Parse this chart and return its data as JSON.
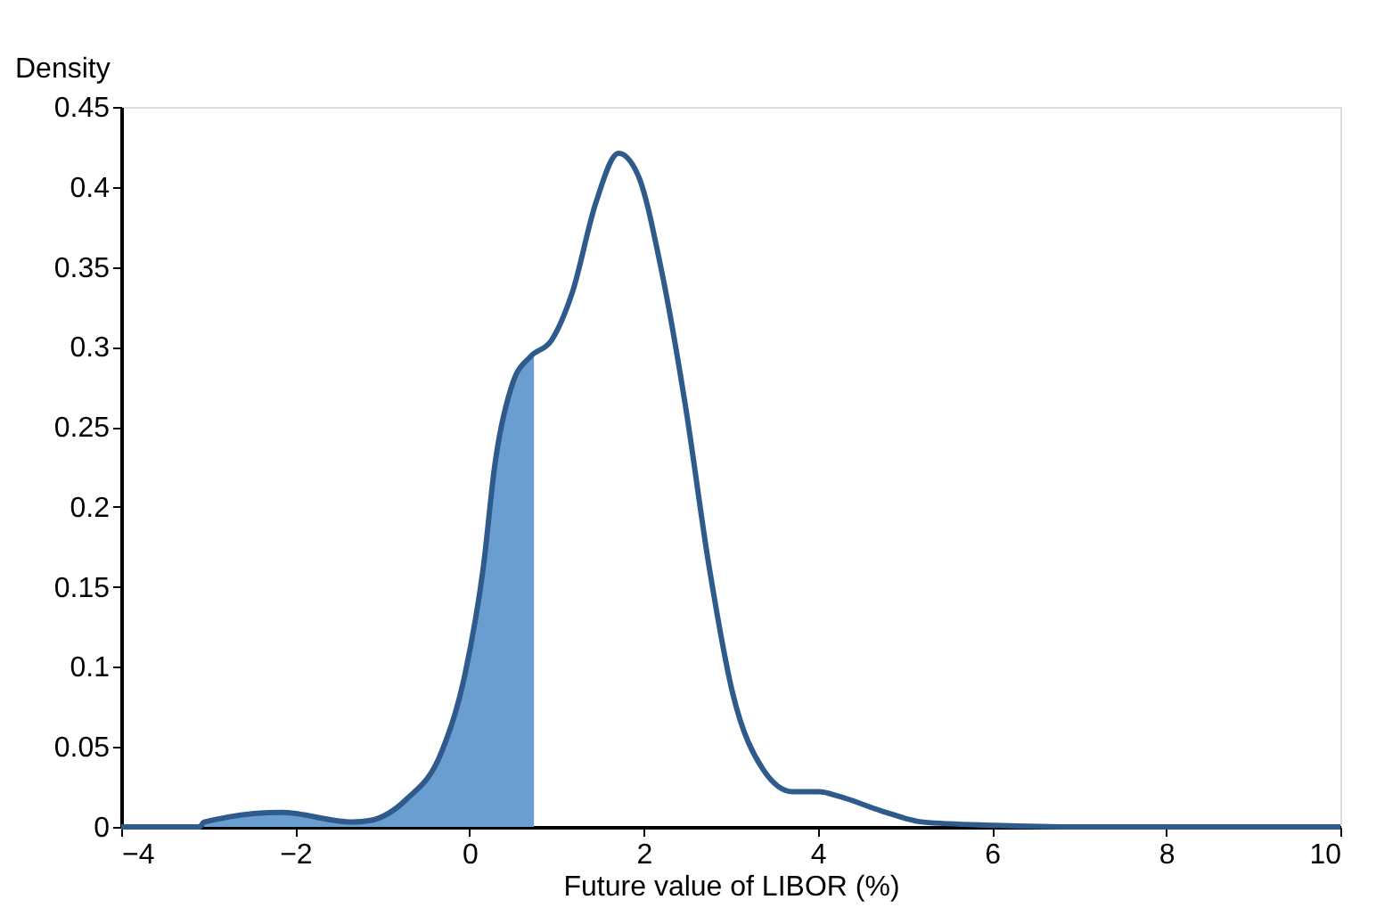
{
  "chart_data": {
    "type": "line",
    "xlabel": "Future value of LIBOR (%)",
    "ylabel": "Density",
    "xlim": [
      -4,
      10
    ],
    "xticks": [
      -4,
      -2,
      0,
      2,
      4,
      6,
      8,
      10
    ],
    "ylim": [
      0,
      0.45
    ],
    "yticks": [
      0,
      0.05,
      0.1,
      0.15,
      0.2,
      0.25,
      0.3,
      0.35,
      0.4,
      0.45
    ],
    "grid": false,
    "legend": false,
    "marker": "none",
    "line_style": "solid",
    "series": [
      {
        "type": "area",
        "color": "#6b9ed0",
        "x": [
          -3.05,
          -2.16,
          -1.34,
          -1.14,
          -0.73,
          -0.32,
          -0.05,
          0.16,
          0.29,
          0.5,
          0.7,
          0.74
        ],
        "values": [
          0.003,
          0.009,
          0.003,
          0.004,
          0.017,
          0.047,
          0.096,
          0.163,
          0.226,
          0.278,
          0.294,
          0.296
        ]
      },
      {
        "type": "line",
        "color": "#2f5b8c",
        "x": [
          -4,
          -3.1,
          -3.05,
          -2.16,
          -1.34,
          -1.14,
          -0.73,
          -0.32,
          -0.05,
          0.16,
          0.29,
          0.5,
          0.7,
          0.94,
          1.18,
          1.45,
          1.71,
          1.93,
          2.2,
          2.48,
          2.75,
          3.02,
          3.37,
          3.71,
          4.01,
          4.25,
          4.73,
          5.21,
          6.03,
          7,
          10
        ],
        "values": [
          0,
          0,
          0.003,
          0.009,
          0.003,
          0.004,
          0.017,
          0.047,
          0.096,
          0.163,
          0.226,
          0.278,
          0.294,
          0.304,
          0.334,
          0.39,
          0.421,
          0.408,
          0.349,
          0.263,
          0.163,
          0.084,
          0.036,
          0.022,
          0.022,
          0.019,
          0.01,
          0.003,
          0.001,
          0,
          0
        ]
      }
    ]
  }
}
